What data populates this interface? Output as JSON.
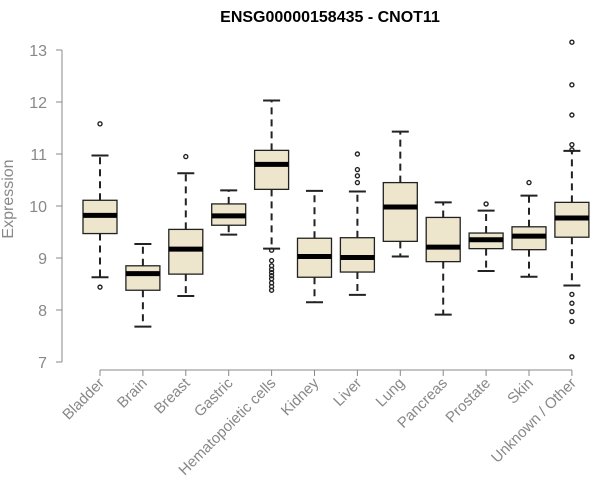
{
  "chart_data": {
    "type": "box",
    "title": "ENSG00000158435 - CNOT11",
    "xlabel": "",
    "ylabel": "Expression",
    "ylim": [
      7,
      13
    ],
    "yticks": [
      7,
      8,
      9,
      10,
      11,
      12,
      13
    ],
    "grid": false,
    "legend": "none",
    "colors": {
      "box_fill": "#ede6cd",
      "box_stroke": "#222222",
      "median": "#000000",
      "axis": "#888888",
      "tick_label": "#888888",
      "title": "#000000"
    },
    "categories": [
      "Bladder",
      "Brain",
      "Breast",
      "Gastric",
      "Hematopoietic cells",
      "Kidney",
      "Liver",
      "Lung",
      "Pancreas",
      "Prostate",
      "Skin",
      "Unknown / Other"
    ],
    "boxes": [
      {
        "category": "Bladder",
        "whisker_low": 8.63,
        "q1": 9.47,
        "median": 9.82,
        "q3": 10.11,
        "whisker_high": 10.97,
        "outliers": [
          11.58,
          8.44
        ]
      },
      {
        "category": "Brain",
        "whisker_low": 7.68,
        "q1": 8.38,
        "median": 8.7,
        "q3": 8.85,
        "whisker_high": 9.27,
        "outliers": []
      },
      {
        "category": "Breast",
        "whisker_low": 8.27,
        "q1": 8.69,
        "median": 9.17,
        "q3": 9.55,
        "whisker_high": 10.63,
        "outliers": [
          10.95
        ]
      },
      {
        "category": "Gastric",
        "whisker_low": 9.45,
        "q1": 9.63,
        "median": 9.81,
        "q3": 10.04,
        "whisker_high": 10.3,
        "outliers": []
      },
      {
        "category": "Hematopoietic cells",
        "whisker_low": 9.18,
        "q1": 10.32,
        "median": 10.8,
        "q3": 11.07,
        "whisker_high": 12.03,
        "outliers": [
          9.15,
          8.95,
          8.85,
          8.78,
          8.72,
          8.66,
          8.6,
          8.52,
          8.45,
          8.38
        ]
      },
      {
        "category": "Kidney",
        "whisker_low": 8.15,
        "q1": 8.63,
        "median": 9.03,
        "q3": 9.38,
        "whisker_high": 10.29,
        "outliers": []
      },
      {
        "category": "Liver",
        "whisker_low": 8.29,
        "q1": 8.73,
        "median": 9.01,
        "q3": 9.39,
        "whisker_high": 10.28,
        "outliers": [
          11.0,
          10.7,
          10.58,
          10.45
        ]
      },
      {
        "category": "Lung",
        "whisker_low": 9.03,
        "q1": 9.32,
        "median": 9.98,
        "q3": 10.45,
        "whisker_high": 11.43,
        "outliers": []
      },
      {
        "category": "Pancreas",
        "whisker_low": 7.91,
        "q1": 8.93,
        "median": 9.21,
        "q3": 9.78,
        "whisker_high": 10.07,
        "outliers": []
      },
      {
        "category": "Prostate",
        "whisker_low": 8.75,
        "q1": 9.18,
        "median": 9.35,
        "q3": 9.48,
        "whisker_high": 9.91,
        "outliers": [
          10.04
        ]
      },
      {
        "category": "Skin",
        "whisker_low": 8.64,
        "q1": 9.16,
        "median": 9.42,
        "q3": 9.6,
        "whisker_high": 10.2,
        "outliers": [
          10.45
        ]
      },
      {
        "category": "Unknown / Other",
        "whisker_low": 8.47,
        "q1": 9.4,
        "median": 9.77,
        "q3": 10.07,
        "whisker_high": 11.06,
        "outliers": [
          13.15,
          12.33,
          11.75,
          11.18,
          11.08,
          8.3,
          8.13,
          7.97,
          7.78,
          7.1
        ]
      }
    ]
  }
}
